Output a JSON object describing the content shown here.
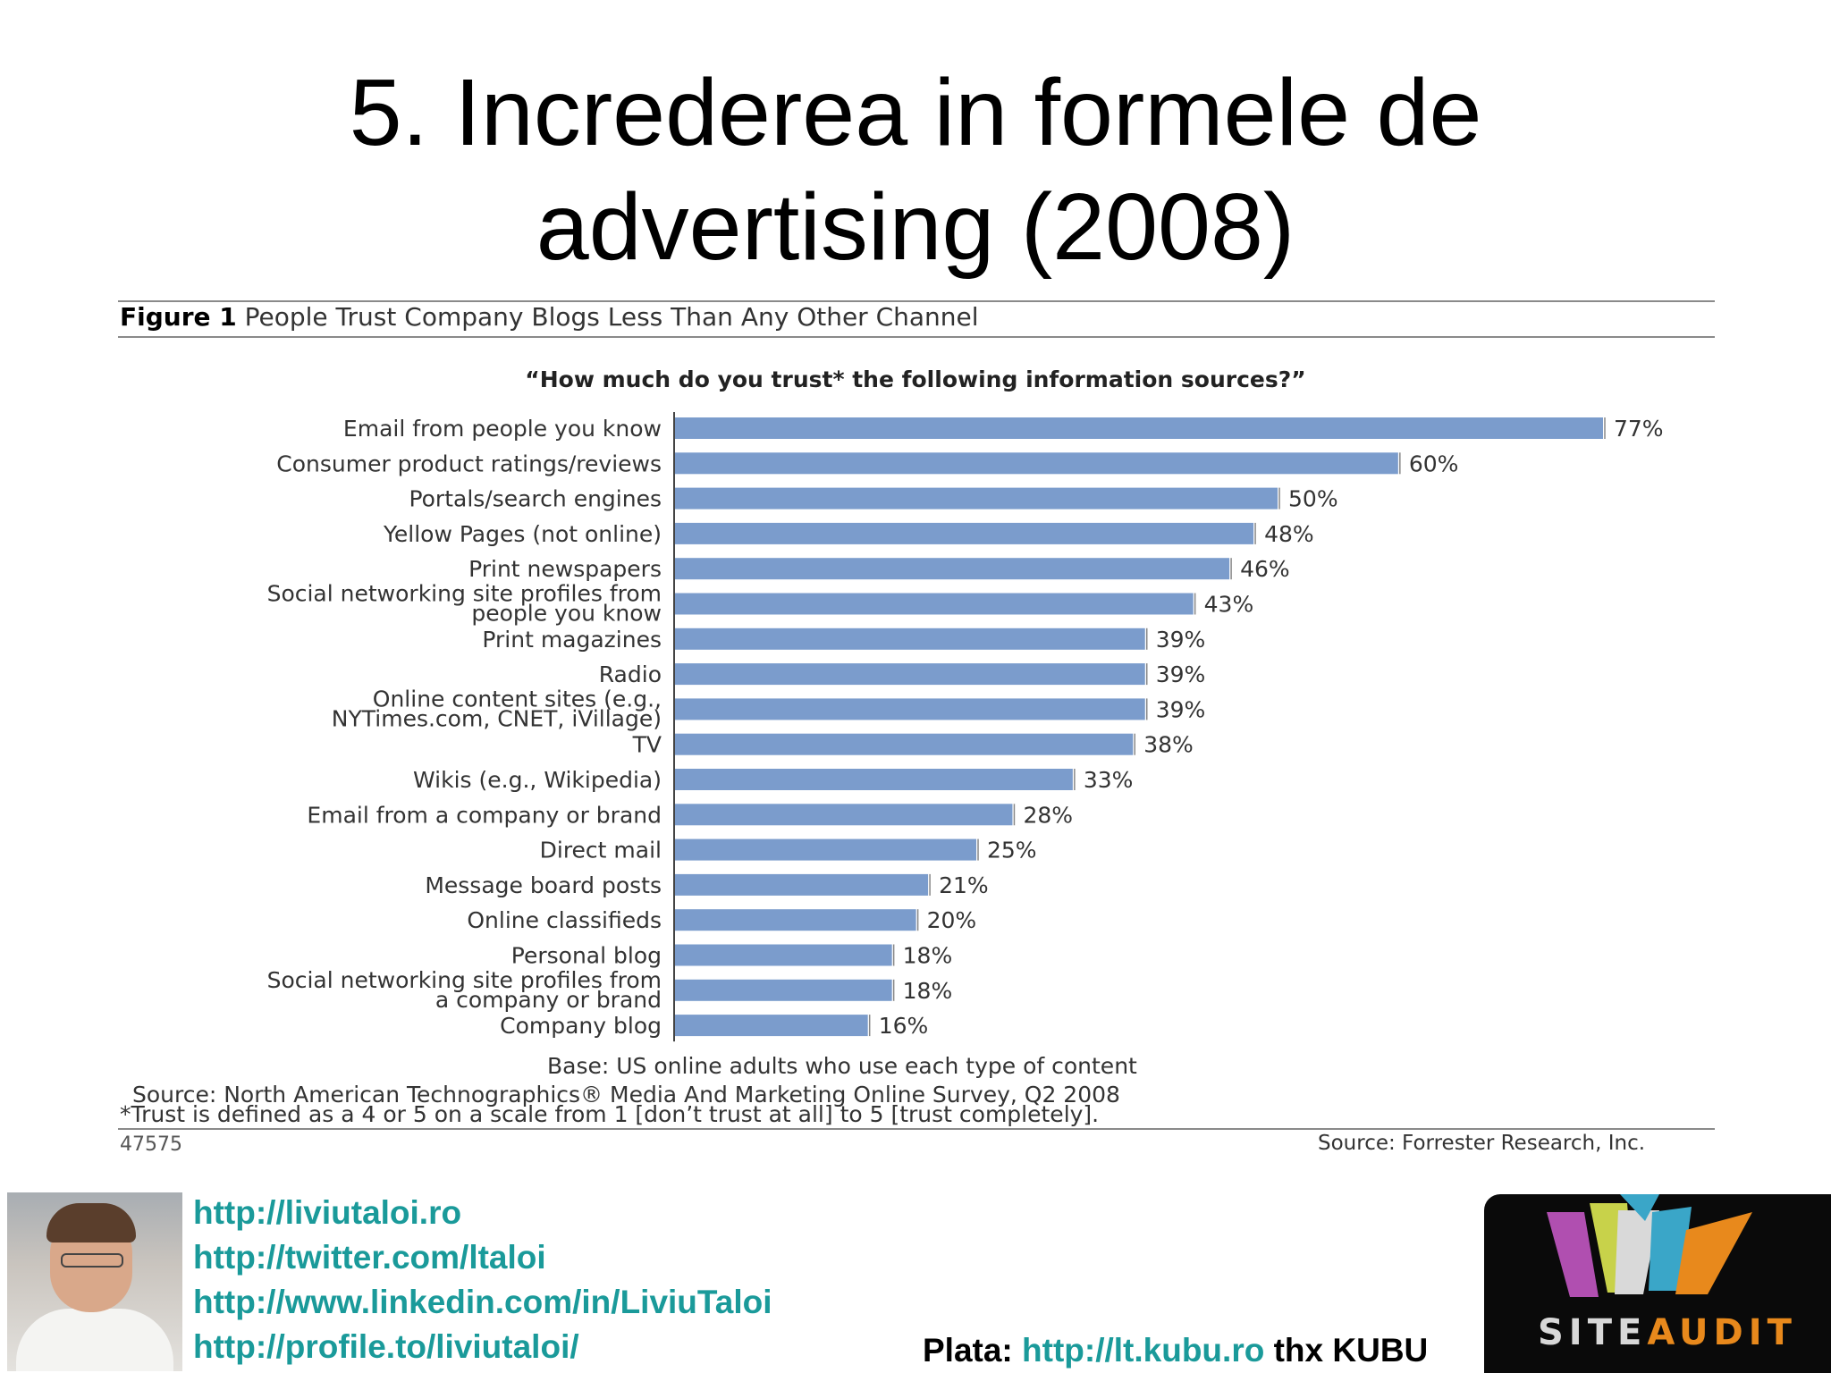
{
  "slide": {
    "title_line1": "5. Increderea in formele de",
    "title_line2": "advertising (2008)"
  },
  "figure": {
    "label": "Figure 1",
    "heading": " People Trust Company Blogs Less Than Any Other Channel",
    "number": "47575",
    "credit": "Source: Forrester Research, Inc."
  },
  "chart_data": {
    "type": "bar",
    "orientation": "horizontal",
    "title": "“How much do you trust* the following information sources?”",
    "categories": [
      [
        "Email from people you know"
      ],
      [
        "Consumer product ratings/reviews"
      ],
      [
        "Portals/search engines"
      ],
      [
        "Yellow Pages (not online)"
      ],
      [
        "Print newspapers"
      ],
      [
        "Social networking site profiles from",
        "people you know"
      ],
      [
        "Print magazines"
      ],
      [
        "Radio"
      ],
      [
        "Online content sites (e.g.,",
        "NYTimes.com, CNET, iVillage)"
      ],
      [
        "TV"
      ],
      [
        "Wikis (e.g., Wikipedia)"
      ],
      [
        "Email from a company or brand"
      ],
      [
        "Direct mail"
      ],
      [
        "Message board posts"
      ],
      [
        "Online classifieds"
      ],
      [
        "Personal blog"
      ],
      [
        "Social networking site profiles from",
        "a company or brand"
      ],
      [
        "Company blog"
      ]
    ],
    "values": [
      77,
      60,
      50,
      48,
      46,
      43,
      39,
      39,
      39,
      38,
      33,
      28,
      25,
      21,
      20,
      18,
      18,
      16
    ],
    "value_labels": [
      "77%",
      "60%",
      "50%",
      "48%",
      "46%",
      "43%",
      "39%",
      "39%",
      "39%",
      "38%",
      "33%",
      "28%",
      "25%",
      "21%",
      "20%",
      "18%",
      "18%",
      "16%"
    ],
    "xlim": [
      0,
      100
    ],
    "bar_color": "#7b9ccc",
    "grid": false,
    "base_note": "Base: US online adults who use each type of content",
    "source_note": "Source: North American Technographics® Media And Marketing Online Survey, Q2 2008",
    "footnote": "*Trust is defined as a 4 or 5 on a scale from 1 [don’t trust at all] to 5 [trust completely]."
  },
  "footer": {
    "links": [
      "http://liviutaloi.ro",
      "http://twitter.com/ltaloi",
      "http://www.linkedin.com/in/LiviuTaloi",
      "http://profile.to/liviutaloi/"
    ],
    "plata_label": "Plata: ",
    "plata_link": "http://lt.kubu.ro",
    "plata_suffix": " thx KUBU",
    "logo_word1": "SITE",
    "logo_word2": "AUDIT",
    "link_color": "#1a9a9a",
    "logo_accent": "#e8891c"
  }
}
